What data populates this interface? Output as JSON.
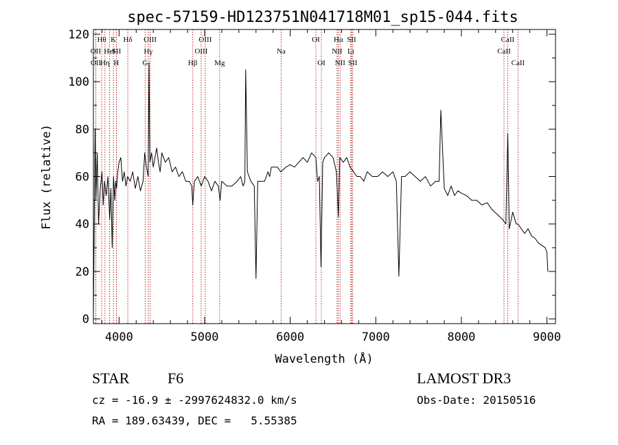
{
  "chart_data": {
    "type": "line",
    "title": "spec-57159-HD123751N041718M01_sp15-044.fits",
    "xlabel": "Wavelength (Å)",
    "ylabel": "Flux (relative)",
    "xlim": [
      3700,
      9100
    ],
    "ylim": [
      -2,
      122
    ],
    "xticks": [
      4000,
      5000,
      6000,
      7000,
      8000,
      9000
    ],
    "yticks": [
      0,
      20,
      40,
      60,
      80,
      100,
      120
    ],
    "line_color": "#000000",
    "marker_color": "#b22222",
    "series": [
      {
        "x": [
          3700,
          3720,
          3730,
          3745,
          3760,
          3780,
          3800,
          3815,
          3830,
          3850,
          3870,
          3890,
          3905,
          3920,
          3935,
          3950,
          3960,
          3970,
          3985,
          4000,
          4020,
          4040,
          4060,
          4080,
          4100,
          4130,
          4160,
          4190,
          4220,
          4250,
          4280,
          4300,
          4320,
          4340,
          4350,
          4360,
          4380,
          4400,
          4420,
          4440,
          4460,
          4480,
          4500,
          4540,
          4580,
          4620,
          4660,
          4700,
          4740,
          4780,
          4820,
          4850,
          4861,
          4880,
          4920,
          4960,
          5000,
          5040,
          5080,
          5120,
          5160,
          5180,
          5200,
          5260,
          5320,
          5380,
          5420,
          5450,
          5470,
          5480,
          5500,
          5540,
          5580,
          5600,
          5620,
          5660,
          5700,
          5740,
          5760,
          5780,
          5800,
          5850,
          5890,
          5950,
          6000,
          6050,
          6100,
          6150,
          6200,
          6250,
          6300,
          6320,
          6340,
          6360,
          6380,
          6400,
          6450,
          6500,
          6540,
          6563,
          6580,
          6620,
          6660,
          6700,
          6740,
          6780,
          6820,
          6860,
          6900,
          6960,
          7020,
          7080,
          7140,
          7200,
          7240,
          7270,
          7300,
          7340,
          7400,
          7460,
          7520,
          7580,
          7640,
          7700,
          7740,
          7760,
          7800,
          7840,
          7880,
          7920,
          7960,
          8000,
          8060,
          8120,
          8180,
          8240,
          8300,
          8360,
          8420,
          8480,
          8520,
          8542,
          8560,
          8600,
          8640,
          8662,
          8700,
          8740,
          8780,
          8820,
          8860,
          8900,
          8940,
          8980,
          9000,
          9010
        ],
        "y": [
          0,
          80,
          50,
          70,
          40,
          55,
          62,
          48,
          58,
          52,
          60,
          42,
          55,
          30,
          60,
          50,
          58,
          55,
          62,
          66,
          68,
          58,
          62,
          56,
          60,
          58,
          62,
          55,
          60,
          54,
          58,
          70,
          64,
          60,
          108,
          66,
          70,
          64,
          68,
          72,
          66,
          62,
          70,
          66,
          68,
          62,
          64,
          60,
          62,
          58,
          58,
          56,
          48,
          58,
          60,
          56,
          60,
          58,
          54,
          58,
          56,
          50,
          58,
          56,
          56,
          58,
          60,
          56,
          58,
          105,
          62,
          58,
          56,
          17,
          58,
          58,
          58,
          62,
          60,
          64,
          64,
          64,
          62,
          64,
          65,
          64,
          66,
          68,
          66,
          70,
          68,
          58,
          60,
          22,
          66,
          68,
          70,
          68,
          62,
          43,
          68,
          66,
          68,
          64,
          62,
          60,
          60,
          58,
          62,
          60,
          60,
          62,
          60,
          62,
          58,
          18,
          60,
          60,
          62,
          60,
          58,
          60,
          56,
          58,
          58,
          88,
          55,
          52,
          56,
          52,
          54,
          53,
          52,
          50,
          50,
          48,
          49,
          46,
          44,
          42,
          40,
          78,
          38,
          45,
          40,
          40,
          38,
          36,
          38,
          35,
          34,
          32,
          31,
          30,
          28,
          20
        ]
      }
    ],
    "line_markers": [
      {
        "label": "OII",
        "x": 3727,
        "row": 2
      },
      {
        "label": "OII",
        "x": 3729,
        "row": 3
      },
      {
        "label": "Hθ",
        "x": 3797,
        "row": 1
      },
      {
        "label": "Hη",
        "x": 3835,
        "row": 3
      },
      {
        "label": "HeI",
        "x": 3889,
        "row": 2
      },
      {
        "label": "K",
        "x": 3934,
        "row": 1
      },
      {
        "label": "SII",
        "x": 3970,
        "row": 2
      },
      {
        "label": "H",
        "x": 3968,
        "row": 3
      },
      {
        "label": "Hδ",
        "x": 4102,
        "row": 1
      },
      {
        "label": "G",
        "x": 4305,
        "row": 3
      },
      {
        "label": "OIII",
        "x": 4363,
        "row": 1
      },
      {
        "label": "Hγ",
        "x": 4341,
        "row": 2
      },
      {
        "label": "Hβ",
        "x": 4861,
        "row": 3
      },
      {
        "label": "OIII",
        "x": 4959,
        "row": 2
      },
      {
        "label": "OIII",
        "x": 5007,
        "row": 1
      },
      {
        "label": "Mg",
        "x": 5175,
        "row": 3
      },
      {
        "label": "Na",
        "x": 5894,
        "row": 2
      },
      {
        "label": "OI",
        "x": 6300,
        "row": 1
      },
      {
        "label": "OI",
        "x": 6364,
        "row": 3
      },
      {
        "label": "NII",
        "x": 6548,
        "row": 2
      },
      {
        "label": "Hα",
        "x": 6563,
        "row": 1
      },
      {
        "label": "NII",
        "x": 6583,
        "row": 3
      },
      {
        "label": "SII",
        "x": 6717,
        "row": 1
      },
      {
        "label": "Li",
        "x": 6708,
        "row": 2
      },
      {
        "label": "SII",
        "x": 6731,
        "row": 3
      },
      {
        "label": "CaII",
        "x": 8498,
        "row": 2
      },
      {
        "label": "CaII",
        "x": 8542,
        "row": 1
      },
      {
        "label": "CaII",
        "x": 8662,
        "row": 3
      }
    ]
  },
  "info": {
    "object_type": "STAR",
    "subclass": "F6",
    "survey": "LAMOST DR3",
    "cz": "cz = -16.9 ± -2997624832.0 km/s",
    "obs_date": "Obs-Date: 20150516",
    "coords": "RA = 189.63439, DEC =   5.55385"
  }
}
